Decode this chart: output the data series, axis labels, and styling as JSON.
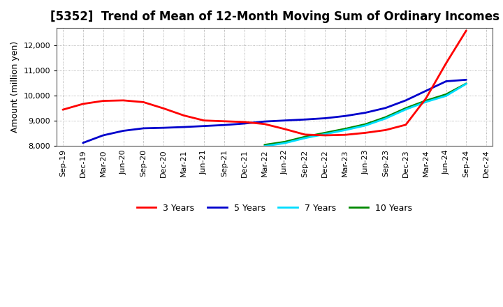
{
  "title": "[5352]  Trend of Mean of 12-Month Moving Sum of Ordinary Incomes",
  "ylabel": "Amount (million yen)",
  "ylim": [
    8000,
    12700
  ],
  "yticks": [
    8000,
    9000,
    10000,
    11000,
    12000
  ],
  "background_color": "#ffffff",
  "grid_color": "#999999",
  "x_labels": [
    "Sep-19",
    "Dec-19",
    "Mar-20",
    "Jun-20",
    "Sep-20",
    "Dec-20",
    "Mar-21",
    "Jun-21",
    "Sep-21",
    "Dec-21",
    "Mar-22",
    "Jun-22",
    "Sep-22",
    "Dec-22",
    "Mar-23",
    "Jun-23",
    "Sep-23",
    "Dec-23",
    "Mar-24",
    "Jun-24",
    "Sep-24",
    "Dec-24"
  ],
  "series": {
    "3 Years": {
      "color": "#ff0000",
      "x_idx": [
        0,
        1,
        2,
        3,
        4,
        5,
        6,
        7,
        8,
        9,
        10,
        11,
        12,
        13,
        14,
        15,
        16,
        17,
        18,
        19,
        20
      ],
      "values": [
        9450,
        9680,
        9800,
        9820,
        9750,
        9500,
        9220,
        9020,
        8990,
        8960,
        8880,
        8680,
        8460,
        8430,
        8450,
        8530,
        8640,
        8850,
        9900,
        11300,
        12600
      ]
    },
    "5 Years": {
      "color": "#0000cc",
      "x_idx": [
        1,
        2,
        3,
        4,
        5,
        6,
        7,
        8,
        9,
        10,
        11,
        12,
        13,
        14,
        15,
        16,
        17,
        18,
        19,
        20
      ],
      "values": [
        8130,
        8430,
        8610,
        8710,
        8730,
        8760,
        8800,
        8840,
        8900,
        8980,
        9020,
        9060,
        9110,
        9200,
        9330,
        9520,
        9820,
        10200,
        10580,
        10640
      ]
    },
    "7 Years": {
      "color": "#00ddff",
      "x_idx": [
        10,
        11,
        12,
        13,
        14,
        15,
        16,
        17,
        18,
        19,
        20
      ],
      "values": [
        8000,
        8120,
        8320,
        8480,
        8640,
        8820,
        9100,
        9460,
        9760,
        10000,
        10480
      ]
    },
    "10 Years": {
      "color": "#008800",
      "x_idx": [
        10,
        11,
        12,
        13,
        14,
        15,
        16,
        17,
        18,
        19,
        20
      ],
      "values": [
        8050,
        8170,
        8370,
        8530,
        8690,
        8870,
        9150,
        9510,
        9810,
        10060,
        10490
      ]
    }
  },
  "legend": {
    "entries": [
      "3 Years",
      "5 Years",
      "7 Years",
      "10 Years"
    ],
    "colors": [
      "#ff0000",
      "#0000cc",
      "#00ddff",
      "#008800"
    ]
  },
  "title_fontsize": 12,
  "label_fontsize": 9,
  "tick_fontsize": 8
}
